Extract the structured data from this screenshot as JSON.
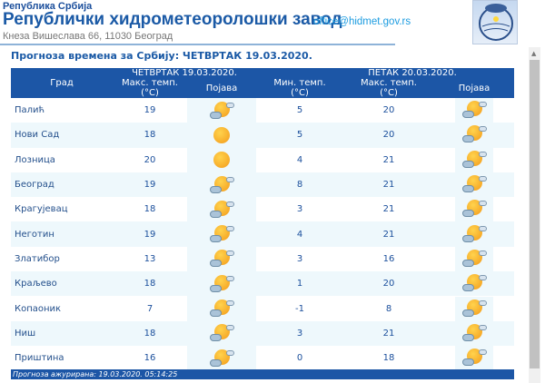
{
  "header": {
    "country": "Република Србија",
    "title": "Републички хидрометеоролошки завод",
    "address": "Кнеза Вишеслава 66, 11030  Београд",
    "email": "office@hidmet.gov.rs"
  },
  "subtitle": "Прогноза времена за Србију: ЧЕТВРТАК  19.03.2020.",
  "table": {
    "day1": "ЧЕТВРТАК  19.03.2020.",
    "day2": "ПЕТАК  20.03.2020.",
    "col_city": "Град",
    "col_max": "Макс. темп.",
    "col_min": "Мин. темп.",
    "unit": "(°C)",
    "col_phen": "Појава",
    "rows": [
      {
        "city": "Палић",
        "max1": "19",
        "icon1": "partly-cloudy",
        "min2": "5",
        "max2": "20",
        "icon2": "partly-cloudy"
      },
      {
        "city": "Нови Сад",
        "max1": "18",
        "icon1": "sunny",
        "min2": "5",
        "max2": "20",
        "icon2": "partly-cloudy"
      },
      {
        "city": "Лозница",
        "max1": "20",
        "icon1": "sunny",
        "min2": "4",
        "max2": "21",
        "icon2": "partly-cloudy"
      },
      {
        "city": "Београд",
        "max1": "19",
        "icon1": "partly-cloudy",
        "min2": "8",
        "max2": "21",
        "icon2": "partly-cloudy"
      },
      {
        "city": "Крагујевац",
        "max1": "18",
        "icon1": "partly-cloudy",
        "min2": "3",
        "max2": "21",
        "icon2": "partly-cloudy"
      },
      {
        "city": "Неготин",
        "max1": "19",
        "icon1": "partly-cloudy",
        "min2": "4",
        "max2": "21",
        "icon2": "partly-cloudy"
      },
      {
        "city": "Златибор",
        "max1": "13",
        "icon1": "partly-cloudy",
        "min2": "3",
        "max2": "16",
        "icon2": "partly-cloudy"
      },
      {
        "city": "Краљево",
        "max1": "18",
        "icon1": "partly-cloudy",
        "min2": "1",
        "max2": "20",
        "icon2": "partly-cloudy"
      },
      {
        "city": "Копаоник",
        "max1": "7",
        "icon1": "partly-cloudy",
        "min2": "-1",
        "max2": "8",
        "icon2": "partly-cloudy"
      },
      {
        "city": "Ниш",
        "max1": "18",
        "icon1": "partly-cloudy",
        "min2": "3",
        "max2": "21",
        "icon2": "partly-cloudy"
      },
      {
        "city": "Приштина",
        "max1": "16",
        "icon1": "partly-cloudy",
        "min2": "0",
        "max2": "18",
        "icon2": "partly-cloudy"
      }
    ]
  },
  "footer": "Прогноза ажурирана:  19.03.2020. 05:14:25"
}
